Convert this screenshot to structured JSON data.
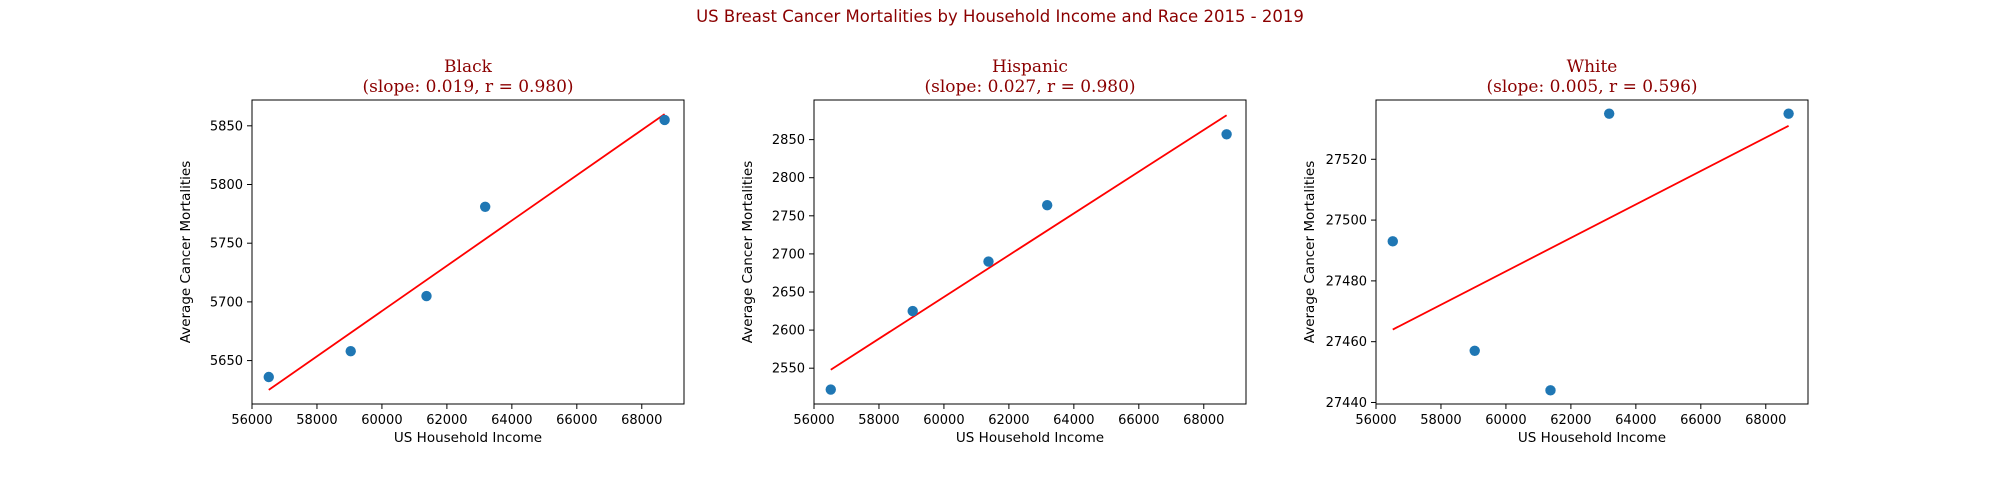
{
  "figure": {
    "suptitle": "US Breast Cancer Mortalities by Household Income and Race 2015 - 2019"
  },
  "chart_data": [
    {
      "type": "scatter",
      "title": "Black",
      "subtitle": "(slope: 0.019, r = 0.980)",
      "xlabel": "US Household Income",
      "ylabel": "Average Cancer Mortalities",
      "x": [
        56516,
        59039,
        61372,
        63179,
        68703
      ],
      "y": [
        5636,
        5658,
        5705,
        5781,
        5855
      ],
      "fit": {
        "x": [
          56516,
          68703
        ],
        "y": [
          5625,
          5860
        ]
      },
      "xlim": [
        56000,
        69300
      ],
      "ylim": [
        5613,
        5872
      ],
      "xticks": [
        56000,
        58000,
        60000,
        62000,
        64000,
        66000,
        68000
      ],
      "yticks": [
        5650,
        5700,
        5750,
        5800,
        5850
      ],
      "marker_color": "#1f77b4",
      "line_color": "#ff0000"
    },
    {
      "type": "scatter",
      "title": "Hispanic",
      "subtitle": "(slope: 0.027, r = 0.980)",
      "xlabel": "US Household Income",
      "ylabel": "Average Cancer Mortalities",
      "x": [
        56516,
        59039,
        61372,
        63179,
        68703
      ],
      "y": [
        2522,
        2625,
        2690,
        2764,
        2857
      ],
      "fit": {
        "x": [
          56516,
          68703
        ],
        "y": [
          2548,
          2882
        ]
      },
      "xlim": [
        56000,
        69300
      ],
      "ylim": [
        2503,
        2902
      ],
      "xticks": [
        56000,
        58000,
        60000,
        62000,
        64000,
        66000,
        68000
      ],
      "yticks": [
        2550,
        2600,
        2650,
        2700,
        2750,
        2800,
        2850
      ],
      "marker_color": "#1f77b4",
      "line_color": "#ff0000"
    },
    {
      "type": "scatter",
      "title": "White",
      "subtitle": "(slope: 0.005, r = 0.596)",
      "xlabel": "US Household Income",
      "ylabel": "Average Cancer Mortalities",
      "x": [
        56516,
        59039,
        61372,
        63179,
        68703
      ],
      "y": [
        27493,
        27457,
        27444,
        27535,
        27535
      ],
      "fit": {
        "x": [
          56516,
          68703
        ],
        "y": [
          27464,
          27531
        ]
      },
      "xlim": [
        56000,
        69300
      ],
      "ylim": [
        27439.5,
        27539.5
      ],
      "xticks": [
        56000,
        58000,
        60000,
        62000,
        64000,
        66000,
        68000
      ],
      "yticks": [
        27440,
        27460,
        27480,
        27500,
        27520
      ],
      "marker_color": "#1f77b4",
      "line_color": "#ff0000"
    }
  ]
}
